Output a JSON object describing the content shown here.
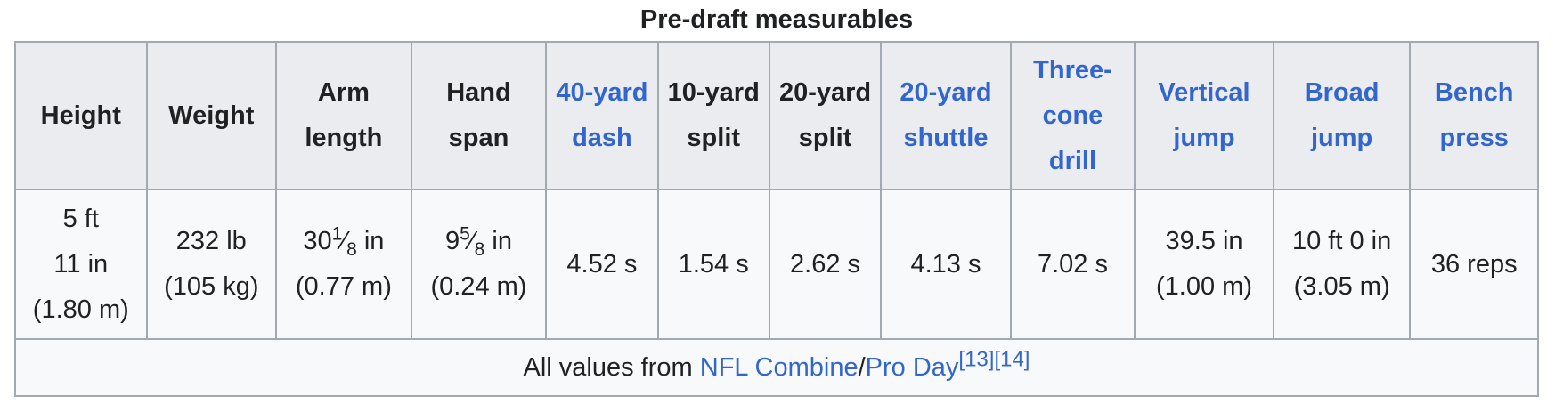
{
  "caption": "Pre-draft measurables",
  "headers": [
    {
      "label": "Height",
      "link": false
    },
    {
      "label": "Weight",
      "link": false
    },
    {
      "label": "Arm length",
      "link": false
    },
    {
      "label": "Hand span",
      "link": false
    },
    {
      "label": "40-yard dash",
      "link": true
    },
    {
      "label": "10-yard split",
      "link": false
    },
    {
      "label": "20-yard split",
      "link": false
    },
    {
      "label": "20-yard shuttle",
      "link": true
    },
    {
      "label": "Three-cone drill",
      "link": true
    },
    {
      "label": "Vertical jump",
      "link": true
    },
    {
      "label": "Broad jump",
      "link": true
    },
    {
      "label": "Bench press",
      "link": true
    }
  ],
  "values": {
    "height_line1": "5 ft",
    "height_line2": "11 in",
    "height_line3": "(1.80 m)",
    "weight_line1": "232 lb",
    "weight_line2": "(105 kg)",
    "arm_whole": "30",
    "arm_frac_num": "1",
    "arm_frac_den": "8",
    "arm_unit": "in",
    "arm_metric": "(0.77 m)",
    "hand_whole": "9",
    "hand_frac_num": "5",
    "hand_frac_den": "8",
    "hand_unit": "in",
    "hand_metric": "(0.24 m)",
    "dash40": "4.52 s",
    "split10": "1.54 s",
    "split20": "2.62 s",
    "shuttle20": "4.13 s",
    "three_cone": "7.02 s",
    "vertical_line1": "39.5 in",
    "vertical_line2": "(1.00 m)",
    "broad_line1": "10 ft 0 in",
    "broad_line2": "(3.05 m)",
    "bench": "36 reps"
  },
  "footer": {
    "prefix": "All values from ",
    "link1": "NFL Combine",
    "separator": "/",
    "link2": "Pro Day",
    "ref1": "[13]",
    "ref2": "[14]"
  },
  "colors": {
    "link": "#3366cc",
    "header_bg": "#eaecf0",
    "cell_bg": "#f8f9fa",
    "border": "#a2a9b1",
    "text": "#202122"
  }
}
